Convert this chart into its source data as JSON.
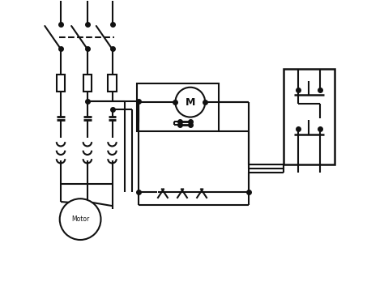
{
  "bg_color": "#ffffff",
  "line_color": "#111111",
  "lw": 1.5,
  "dot_ms": 4.0,
  "figsize": [
    4.74,
    3.53
  ],
  "dpi": 100,
  "xlim": [
    0,
    10
  ],
  "ylim": [
    0,
    8
  ]
}
